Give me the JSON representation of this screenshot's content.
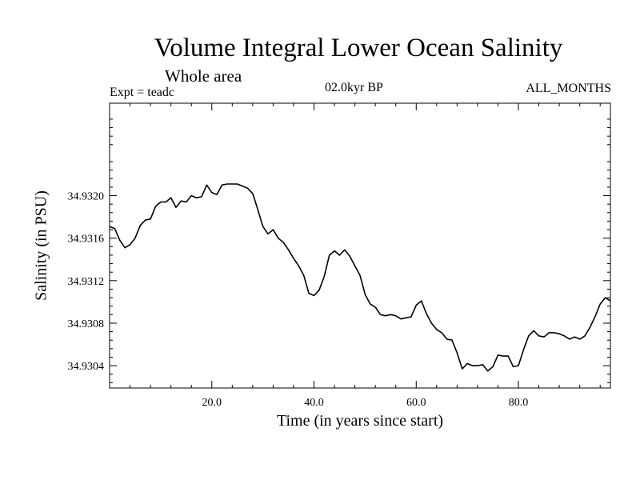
{
  "chart_data": {
    "type": "line",
    "title": "Volume Integral Lower Ocean Salinity",
    "subtitle": "Whole area",
    "annotations": {
      "experiment": "Expt = teadc",
      "period": "02.0kyr BP",
      "months": "ALL_MONTHS"
    },
    "xlabel": "Time (in years since start)",
    "ylabel": "Salinity (in PSU)",
    "xlim": [
      0,
      98
    ],
    "ylim": [
      34.93019,
      34.93287
    ],
    "x_ticks": [
      20,
      40,
      60,
      80
    ],
    "x_tick_labels": [
      "20.0",
      "40.0",
      "60.0",
      "80.0"
    ],
    "y_ticks": [
      34.9304,
      34.9308,
      34.9312,
      34.9316,
      34.932
    ],
    "y_tick_labels": [
      "34.9304",
      "34.9308",
      "34.9312",
      "34.9316",
      "34.9320"
    ],
    "grid": false,
    "series": [
      {
        "name": "Salinity",
        "x": [
          0,
          1,
          2,
          3,
          4,
          5,
          6,
          7,
          8,
          9,
          10,
          11,
          12,
          13,
          14,
          15,
          16,
          17,
          18,
          19,
          20,
          21,
          22,
          23,
          24,
          25,
          26,
          27,
          28,
          29,
          30,
          31,
          32,
          33,
          34,
          35,
          36,
          37,
          38,
          39,
          40,
          41,
          42,
          43,
          44,
          45,
          46,
          47,
          48,
          49,
          50,
          51,
          52,
          53,
          54,
          55,
          56,
          57,
          58,
          59,
          60,
          61,
          62,
          63,
          64,
          65,
          66,
          67,
          68,
          69,
          70,
          71,
          72,
          73,
          74,
          75,
          76,
          77,
          78,
          79,
          80,
          81,
          82,
          83,
          84,
          85,
          86,
          87,
          88,
          89,
          90,
          91,
          92,
          93,
          94,
          95,
          96,
          97,
          98
        ],
        "values": [
          34.93171,
          34.93169,
          34.93158,
          34.93151,
          34.93154,
          34.9316,
          34.93172,
          34.93177,
          34.93178,
          34.9319,
          34.93194,
          34.93194,
          34.93198,
          34.93189,
          34.93195,
          34.93194,
          34.932,
          34.93198,
          34.93199,
          34.9321,
          34.93203,
          34.93201,
          34.9321,
          34.93211,
          34.93211,
          34.93211,
          34.93209,
          34.93207,
          34.93202,
          34.93187,
          34.93171,
          34.93164,
          34.93168,
          34.9316,
          34.93156,
          34.93149,
          34.93141,
          34.93134,
          34.93125,
          34.93108,
          34.93106,
          34.93111,
          34.93124,
          34.93144,
          34.93148,
          34.93144,
          34.93149,
          34.93143,
          34.93134,
          34.93125,
          34.93107,
          34.93098,
          34.93095,
          34.93088,
          34.93087,
          34.93088,
          34.93087,
          34.93084,
          34.93085,
          34.93086,
          34.93097,
          34.93101,
          34.93089,
          34.9308,
          34.93074,
          34.93071,
          34.93065,
          34.93064,
          34.93052,
          34.93037,
          34.93042,
          34.9304,
          34.9304,
          34.93041,
          34.93035,
          34.93039,
          34.9305,
          34.93049,
          34.93049,
          34.93039,
          34.9304,
          34.93055,
          34.93068,
          34.93073,
          34.93068,
          34.93067,
          34.93071,
          34.93071,
          34.9307,
          34.93068,
          34.93065,
          34.93067,
          34.93065,
          34.93068,
          34.93076,
          34.93086,
          34.93098,
          34.93104,
          34.93101
        ]
      }
    ]
  }
}
